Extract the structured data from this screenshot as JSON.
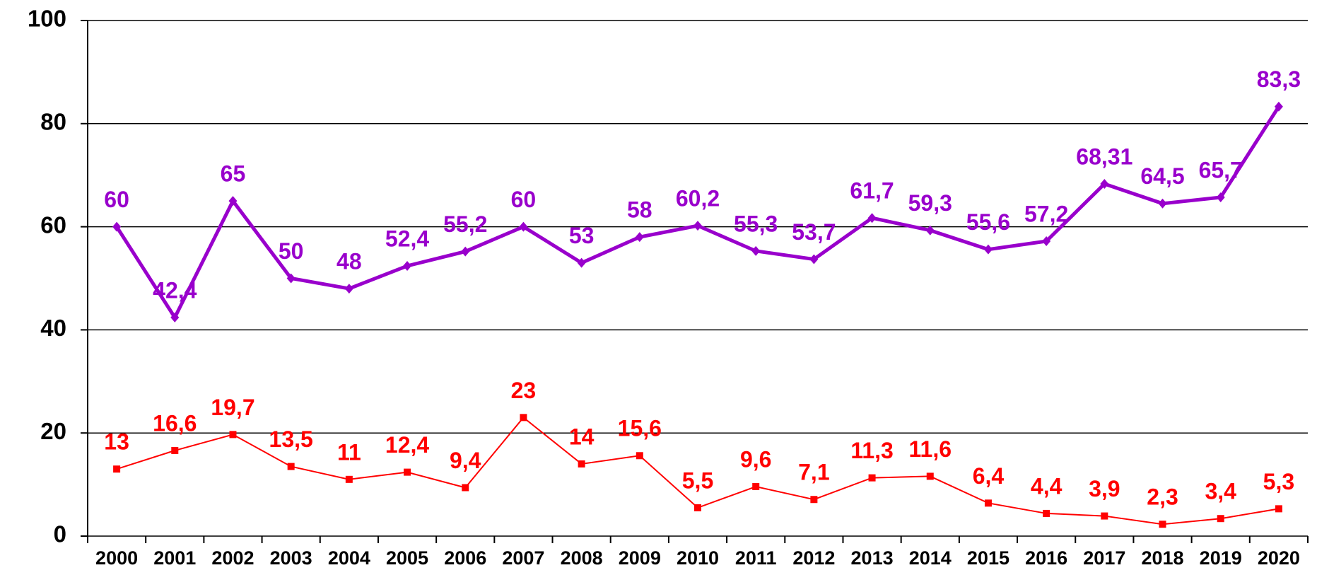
{
  "chart_data": {
    "type": "line",
    "categories": [
      "2000",
      "2001",
      "2002",
      "2003",
      "2004",
      "2005",
      "2006",
      "2007",
      "2008",
      "2009",
      "2010",
      "2011",
      "2012",
      "2013",
      "2014",
      "2015",
      "2016",
      "2017",
      "2018",
      "2019",
      "2020"
    ],
    "series": [
      {
        "color": "#9900cc",
        "values": [
          60,
          42.4,
          65,
          50,
          48,
          52.4,
          55.2,
          60,
          53,
          58,
          60.2,
          55.3,
          53.7,
          61.7,
          59.3,
          55.6,
          57.2,
          68.31,
          64.5,
          65.7,
          83.3
        ],
        "value_labels": [
          "60",
          "42,4",
          "65",
          "50",
          "48",
          "52,4",
          "55,2",
          "60",
          "53",
          "58",
          "60,2",
          "55,3",
          "53,7",
          "61,7",
          "59,3",
          "55,6",
          "57,2",
          "68,31",
          "64,5",
          "65,7",
          "83,3"
        ]
      },
      {
        "color": "#ff0000",
        "values": [
          13,
          16.6,
          19.7,
          13.5,
          11,
          12.4,
          9.4,
          23,
          14,
          15.6,
          5.5,
          9.6,
          7.1,
          11.3,
          11.6,
          6.4,
          4.4,
          3.9,
          2.3,
          3.4,
          5.3
        ],
        "value_labels": [
          "13",
          "16,6",
          "19,7",
          "13,5",
          "11",
          "12,4",
          "9,4",
          "23",
          "14",
          "15,6",
          "5,5",
          "9,6",
          "7,1",
          "11,3",
          "11,6",
          "6,4",
          "4,4",
          "3,9",
          "2,3",
          "3,4",
          "5,3"
        ]
      }
    ],
    "ylim": [
      0,
      100
    ],
    "yticks": [
      0,
      20,
      40,
      60,
      80,
      100
    ],
    "grid": true
  }
}
